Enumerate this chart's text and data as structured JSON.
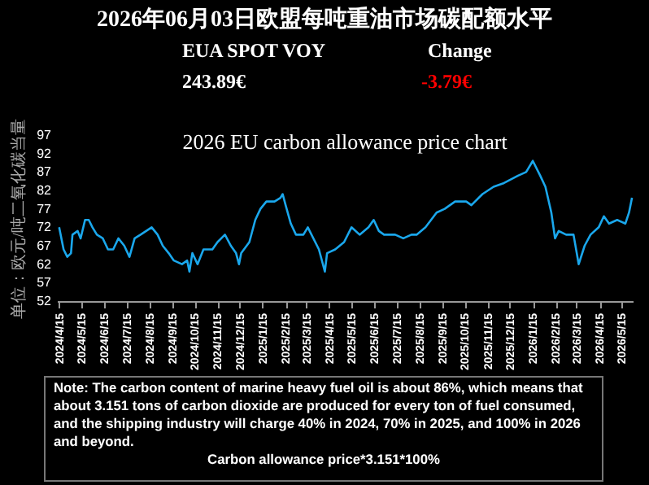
{
  "chart_data": {
    "type": "line",
    "title": "2026年06月03日欧盟每吨重油市场碳配额水平",
    "subtitle": "2026 EU carbon allowance price chart",
    "ylabel": "单位：欧元/吨二氧化碳当量",
    "annotations": [
      "EUA SPOT VOY",
      "243.89€",
      "Change",
      "-3.79€",
      "Note: The carbon content of marine heavy fuel oil is about 86%, which means that about 3.151 tons of carbon dioxide are produced for every ton of fuel consumed, and the shipping industry will charge 40% in 2024, 70% in 2025, and 100% in 2026 and beyond.",
      "Carbon allowance price*3.151*100%"
    ],
    "x": [
      "2024-04-15",
      "2024-04-21",
      "2024-04-26",
      "2024-05-01",
      "2024-05-03",
      "2024-05-10",
      "2024-05-14",
      "2024-05-20",
      "2024-05-25",
      "2024-05-30",
      "2024-06-05",
      "2024-06-13",
      "2024-06-20",
      "2024-06-27",
      "2024-07-04",
      "2024-07-12",
      "2024-07-19",
      "2024-07-26",
      "2024-08-03",
      "2024-08-18",
      "2024-08-26",
      "2024-09-02",
      "2024-09-10",
      "2024-09-17",
      "2024-09-28",
      "2024-10-05",
      "2024-10-08",
      "2024-10-12",
      "2024-10-19",
      "2024-10-27",
      "2024-11-08",
      "2024-11-15",
      "2024-11-25",
      "2024-12-03",
      "2024-12-10",
      "2024-12-14",
      "2024-12-17",
      "2024-12-28",
      "2025-01-05",
      "2025-01-12",
      "2025-01-20",
      "2025-01-31",
      "2025-02-08",
      "2025-02-11",
      "2025-02-15",
      "2025-02-22",
      "2025-03-01",
      "2025-03-11",
      "2025-03-17",
      "2025-04-01",
      "2025-04-09",
      "2025-04-12",
      "2025-04-23",
      "2025-05-05",
      "2025-05-15",
      "2025-05-26",
      "2025-06-07",
      "2025-06-14",
      "2025-06-21",
      "2025-06-28",
      "2025-07-13",
      "2025-07-24",
      "2025-08-04",
      "2025-08-11",
      "2025-08-23",
      "2025-09-07",
      "2025-09-18",
      "2025-10-02",
      "2025-10-17",
      "2025-10-24",
      "2025-11-08",
      "2025-11-23",
      "2025-12-07",
      "2025-12-26",
      "2026-01-06",
      "2026-01-15",
      "2026-01-25",
      "2026-02-01",
      "2026-02-09",
      "2026-02-14",
      "2026-02-19",
      "2026-03-01",
      "2026-03-11",
      "2026-03-18",
      "2026-03-26",
      "2026-04-03",
      "2026-04-14",
      "2026-04-21",
      "2026-04-28",
      "2026-05-09",
      "2026-05-20",
      "2026-05-25",
      "2026-05-29"
    ],
    "series": [
      {
        "color": "#1aa7ec",
        "values": [
          72,
          66,
          64,
          65,
          70,
          71,
          69,
          74,
          74,
          72,
          70,
          69,
          66,
          66,
          69,
          67,
          64,
          69,
          70,
          72,
          70,
          67,
          65,
          63,
          62,
          63,
          60,
          65,
          62,
          66,
          66,
          68,
          70,
          67,
          65,
          62,
          65,
          68,
          74,
          77,
          79,
          79,
          80,
          81,
          78,
          73,
          70,
          70,
          72,
          66,
          60,
          65,
          66,
          68,
          72,
          70,
          72,
          74,
          71,
          70,
          70,
          69,
          70,
          70,
          72,
          76,
          77,
          79,
          79,
          78,
          81,
          83,
          84,
          86,
          87,
          90,
          86,
          83,
          76,
          69,
          71,
          70,
          70,
          62,
          67,
          70,
          72,
          75,
          73,
          74,
          73,
          76,
          80
        ]
      }
    ],
    "xlim": [
      "2024-04-12",
      "2026-05-30"
    ],
    "xticks": [
      {
        "value": "2024-04-15",
        "label": "2024/4/15"
      },
      {
        "value": "2024-05-15",
        "label": "2024/5/15"
      },
      {
        "value": "2024-06-15",
        "label": "2024/6/15"
      },
      {
        "value": "2024-07-15",
        "label": "2024/7/15"
      },
      {
        "value": "2024-08-15",
        "label": "2024/8/15"
      },
      {
        "value": "2024-09-15",
        "label": "2024/9/15"
      },
      {
        "value": "2024-10-15",
        "label": "2024/10/15"
      },
      {
        "value": "2024-11-15",
        "label": "2024/11/15"
      },
      {
        "value": "2024-12-15",
        "label": "2024/12/15"
      },
      {
        "value": "2025-01-15",
        "label": "2025/1/15"
      },
      {
        "value": "2025-02-15",
        "label": "2025/2/15"
      },
      {
        "value": "2025-03-15",
        "label": "2025/3/15"
      },
      {
        "value": "2025-04-15",
        "label": "2025/4/15"
      },
      {
        "value": "2025-05-15",
        "label": "2025/5/15"
      },
      {
        "value": "2025-06-15",
        "label": "2025/6/15"
      },
      {
        "value": "2025-07-15",
        "label": "2025/7/15"
      },
      {
        "value": "2025-08-15",
        "label": "2025/8/15"
      },
      {
        "value": "2025-09-15",
        "label": "2025/9/15"
      },
      {
        "value": "2025-10-15",
        "label": "2025/10/15"
      },
      {
        "value": "2025-11-15",
        "label": "2025/11/15"
      },
      {
        "value": "2025-12-15",
        "label": "2025/12/15"
      },
      {
        "value": "2026-01-15",
        "label": "2026/1/15"
      },
      {
        "value": "2026-02-15",
        "label": "2026/2/15"
      },
      {
        "value": "2026-03-15",
        "label": "2026/3/15"
      },
      {
        "value": "2026-04-15",
        "label": "2026/4/15"
      },
      {
        "value": "2026-05-15",
        "label": "2026/5/15"
      }
    ],
    "ylim": [
      52,
      97
    ],
    "yticks": [
      52,
      57,
      62,
      67,
      72,
      77,
      82,
      87,
      92,
      97
    ],
    "grid": false,
    "marker": "none",
    "line_style": "solid"
  }
}
